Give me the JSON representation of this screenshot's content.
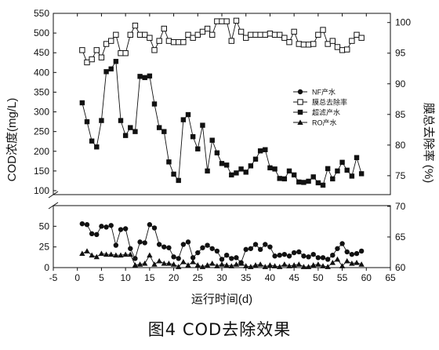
{
  "caption": "图4 COD去除效果",
  "chart_data": {
    "type": "line",
    "xlabel": "运行时间(d)",
    "ylabel_left": "COD浓度(mg/L)",
    "ylabel_right": "膜总去除率 (%)",
    "x_ticks": [
      -5,
      0,
      5,
      10,
      15,
      20,
      25,
      30,
      35,
      40,
      45,
      50,
      55,
      60,
      65
    ],
    "left_ticks_lower": [
      0,
      25,
      50
    ],
    "left_ticks_upper": [
      100,
      150,
      200,
      250,
      300,
      350,
      400,
      450,
      500,
      550
    ],
    "right_ticks": [
      60,
      65,
      70,
      75,
      80,
      85,
      90,
      95,
      100
    ],
    "axis_break": "left y-axis broken between 75 and 90 mg/L",
    "xlim": [
      -5,
      65
    ],
    "ylim_left_lower": [
      0,
      75
    ],
    "ylim_left_upper": [
      90,
      550
    ],
    "ylim_right": [
      60,
      101.5
    ],
    "legend_position": "upper-right inside plot",
    "series": [
      {
        "name": "NF产水",
        "marker": "filled-circle",
        "axis": "left",
        "x": [
          1,
          2,
          3,
          4,
          5,
          6,
          7,
          8,
          9,
          10,
          11,
          12,
          13,
          14,
          15,
          16,
          17,
          18,
          19,
          20,
          21,
          22,
          23,
          24,
          25,
          26,
          27,
          28,
          29,
          30,
          31,
          32,
          33,
          34,
          35,
          36,
          37,
          38,
          39,
          40,
          41,
          42,
          43,
          44,
          45,
          46,
          47,
          48,
          49,
          50,
          51,
          52,
          53,
          54,
          55,
          56,
          57,
          58,
          59
        ],
        "y": [
          53,
          52,
          41,
          40,
          50,
          49,
          51,
          27,
          46,
          47,
          23,
          11,
          31,
          30,
          52,
          48,
          28,
          25,
          24,
          13,
          11,
          28,
          31,
          12,
          18,
          24,
          27,
          23,
          20,
          10,
          15,
          11,
          12,
          6,
          22,
          23,
          28,
          22,
          28,
          25,
          14,
          15,
          16,
          14,
          18,
          19,
          14,
          13,
          16,
          12,
          12,
          10,
          15,
          23,
          29,
          19,
          16,
          17,
          20
        ]
      },
      {
        "name": "膜总去除率",
        "marker": "open-square",
        "axis": "right",
        "x": [
          1,
          2,
          3,
          4,
          5,
          6,
          7,
          8,
          9,
          10,
          11,
          12,
          13,
          14,
          15,
          16,
          17,
          18,
          19,
          20,
          21,
          22,
          23,
          24,
          25,
          26,
          27,
          28,
          29,
          30,
          31,
          32,
          33,
          34,
          35,
          36,
          37,
          38,
          39,
          40,
          41,
          42,
          43,
          44,
          45,
          46,
          47,
          48,
          49,
          50,
          51,
          52,
          53,
          54,
          55,
          56,
          57,
          58,
          59
        ],
        "y": [
          95.5,
          93.5,
          94.0,
          95.5,
          94.3,
          96.5,
          97.0,
          98.0,
          95.0,
          95.0,
          98.0,
          99.5,
          98.0,
          98.0,
          97.5,
          95.5,
          97.0,
          99.0,
          97.0,
          96.8,
          96.8,
          96.8,
          98.0,
          97.5,
          98.0,
          98.5,
          99.0,
          98.0,
          100.2,
          100.2,
          100.2,
          97.0,
          100.3,
          98.5,
          97.5,
          98.0,
          98.0,
          98.0,
          98.0,
          98.2,
          98.0,
          98.0,
          97.5,
          96.8,
          98.5,
          96.5,
          96.4,
          96.4,
          96.5,
          98.0,
          98.8,
          96.5,
          97.0,
          96.0,
          95.5,
          95.6,
          97.0,
          98.0,
          97.5
        ]
      },
      {
        "name": "超滤产水",
        "marker": "filled-square",
        "axis": "left",
        "x": [
          1,
          2,
          3,
          4,
          5,
          6,
          7,
          8,
          9,
          10,
          11,
          12,
          13,
          14,
          15,
          16,
          17,
          18,
          19,
          20,
          21,
          22,
          23,
          24,
          25,
          26,
          27,
          28,
          29,
          30,
          31,
          32,
          33,
          34,
          35,
          36,
          37,
          38,
          39,
          40,
          41,
          42,
          43,
          44,
          45,
          46,
          47,
          48,
          49,
          50,
          51,
          52,
          53,
          54,
          55,
          56,
          57,
          58,
          59
        ],
        "y": [
          323,
          275,
          226,
          211,
          278,
          402,
          409,
          428,
          278,
          240,
          260,
          250,
          390,
          387,
          391,
          320,
          260,
          250,
          173,
          142,
          126,
          280,
          293,
          237,
          206,
          266,
          150,
          228,
          196,
          169,
          165,
          140,
          145,
          155,
          147,
          163,
          180,
          201,
          204,
          158,
          155,
          131,
          130,
          150,
          140,
          122,
          121,
          124,
          135,
          120,
          114,
          156,
          130,
          150,
          172,
          152,
          137,
          184,
          143
        ]
      },
      {
        "name": "RO产水",
        "marker": "filled-triangle",
        "axis": "left",
        "x": [
          1,
          2,
          3,
          4,
          5,
          6,
          7,
          8,
          9,
          10,
          11,
          12,
          13,
          14,
          15,
          16,
          17,
          18,
          19,
          20,
          21,
          22,
          23,
          24,
          25,
          26,
          27,
          28,
          29,
          30,
          31,
          32,
          33,
          34,
          35,
          36,
          37,
          38,
          39,
          40,
          41,
          42,
          43,
          44,
          45,
          46,
          47,
          48,
          49,
          50,
          51,
          52,
          53,
          54,
          55,
          56,
          57,
          58,
          59
        ],
        "y": [
          17,
          20,
          15,
          13,
          17,
          16,
          16,
          15,
          15,
          16,
          16,
          3,
          4,
          5,
          15,
          4,
          8,
          5,
          5,
          4,
          1,
          7,
          3,
          7,
          3,
          1,
          3,
          5,
          2,
          4,
          3,
          2,
          4,
          5,
          2,
          1,
          3,
          4,
          1,
          3,
          2,
          1,
          4,
          2,
          3,
          4,
          1,
          1,
          3,
          4,
          2,
          1,
          6,
          10,
          2,
          8,
          5,
          6,
          4
        ]
      }
    ]
  }
}
